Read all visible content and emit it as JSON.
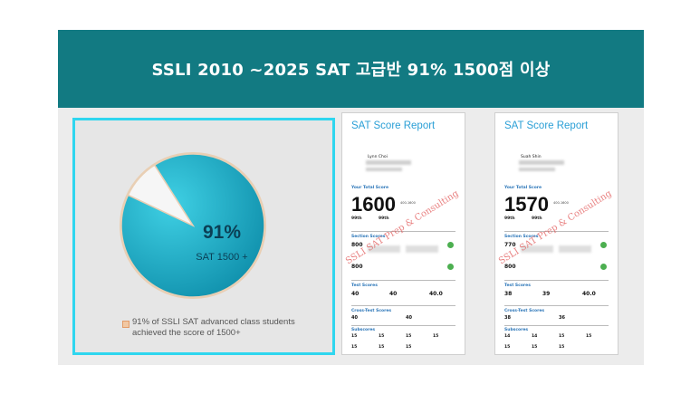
{
  "banner": {
    "title": "SSLI 2010 ~2025 SAT 고급반 91% 1500점 이상"
  },
  "chart_data": {
    "type": "pie",
    "slices": [
      {
        "label": "91%",
        "value": 91,
        "color": "#1aaac2"
      },
      {
        "label": "",
        "value": 9,
        "color": "#f6f6f6"
      }
    ],
    "center_value": "91%",
    "center_label": "SAT 1500 +",
    "legend": [
      "91% of SSLI SAT advanced class students achieved the score of 1500+"
    ],
    "legend_swatch_color": "#f1c8a3"
  },
  "reports": [
    {
      "title": "SAT Score Report",
      "name": "Lynn Choi",
      "total_label": "Your Total Score",
      "total": "1600",
      "range": "400-1600",
      "pct1": "99th",
      "pct2": "99th",
      "section_label": "Section Scores",
      "erw": "800",
      "math": "800",
      "test_label": "Test Scores",
      "reading": "40",
      "writing": "40",
      "math_test": "40.0",
      "cross_label": "Cross-Test Scores",
      "cross1": "40",
      "cross2": "40",
      "subscores_label": "Subscores",
      "subscores": [
        "15",
        "15",
        "15",
        "15",
        "15",
        "15",
        "15"
      ],
      "watermark": "SSLI SAT Prep & Consulting"
    },
    {
      "title": "SAT Score Report",
      "name": "Suah Shin",
      "total_label": "Your Total Score",
      "total": "1570",
      "range": "400-1600",
      "pct1": "99th",
      "pct2": "99th",
      "section_label": "Section Scores",
      "erw": "770",
      "math": "800",
      "test_label": "Test Scores",
      "reading": "38",
      "writing": "39",
      "math_test": "40.0",
      "cross_label": "Cross-Test Scores",
      "cross1": "38",
      "cross2": "36",
      "subscores_label": "Subscores",
      "subscores": [
        "14",
        "14",
        "15",
        "15",
        "15",
        "15",
        "15"
      ],
      "watermark": "SSLI SAT Prep & Consulting"
    }
  ]
}
